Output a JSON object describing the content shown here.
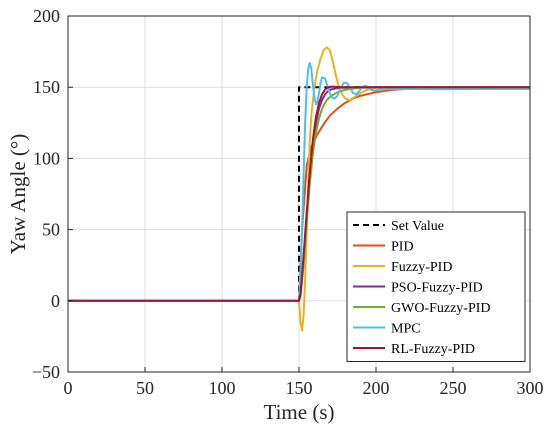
{
  "chart_data": {
    "type": "line",
    "xlabel": "Time (s)",
    "ylabel": "Yaw Angle (°)",
    "xlim": [
      0,
      300
    ],
    "ylim": [
      -50,
      200
    ],
    "xticks": [
      0,
      50,
      100,
      150,
      200,
      250,
      300
    ],
    "yticks": [
      -50,
      0,
      50,
      100,
      150,
      200
    ],
    "xtick_labels": [
      "0",
      "50",
      "100",
      "150",
      "200",
      "250",
      "300"
    ],
    "ytick_labels": [
      "−50",
      "0",
      "50",
      "100",
      "150",
      "200"
    ],
    "grid": true,
    "legend_position": "bottom-right",
    "series": [
      {
        "name": "Set Value",
        "color": "#000000",
        "dash": true,
        "x": [
          0,
          150,
          150,
          300
        ],
        "y": [
          0,
          0,
          150,
          150
        ]
      },
      {
        "name": "PID",
        "color": "#D95319",
        "x": [
          0,
          150,
          152,
          155,
          158,
          162,
          166,
          170,
          175,
          180,
          185,
          190,
          200,
          210,
          220,
          235,
          250,
          270,
          300
        ],
        "y": [
          0,
          0,
          50,
          95,
          108,
          117,
          124,
          130,
          135,
          139,
          142,
          144,
          146.5,
          148,
          148.8,
          149.4,
          149.7,
          149.9,
          150
        ]
      },
      {
        "name": "Fuzzy-PID",
        "color": "#EDB120",
        "x": [
          0,
          150,
          151,
          152,
          153,
          154,
          155,
          156,
          157,
          158,
          160,
          162,
          164,
          166,
          168,
          170,
          172,
          174,
          176,
          178,
          180,
          183,
          186,
          190,
          195,
          200,
          210,
          230,
          260,
          300
        ],
        "y": [
          0,
          0,
          -15,
          -21,
          -10,
          15,
          50,
          85,
          112,
          130,
          150,
          162,
          170,
          176,
          178,
          176,
          168,
          158,
          150,
          145,
          142,
          141,
          143,
          146,
          148.5,
          149.5,
          150,
          150,
          150,
          150
        ]
      },
      {
        "name": "PSO-Fuzzy-PID",
        "color": "#7E2F8E",
        "x": [
          0,
          150,
          151,
          153,
          155,
          157,
          159,
          161,
          163,
          165,
          167,
          169,
          171,
          174,
          178,
          185,
          200,
          230,
          300
        ],
        "y": [
          0,
          0,
          5,
          30,
          60,
          88,
          110,
          125,
          135,
          141,
          145,
          147.5,
          148.5,
          149.2,
          149.6,
          149.8,
          150,
          150,
          150
        ]
      },
      {
        "name": "GWO-Fuzzy-PID",
        "color": "#77AC30",
        "x": [
          0,
          150,
          151,
          153,
          155,
          157,
          159,
          161,
          163,
          165,
          168,
          171,
          175,
          180,
          185,
          190,
          200,
          220,
          300
        ],
        "y": [
          0,
          0,
          3,
          25,
          55,
          82,
          103,
          118,
          128,
          135,
          141,
          144,
          146.5,
          148.2,
          149,
          149.5,
          149.9,
          150,
          150
        ]
      },
      {
        "name": "MPC",
        "color": "#4DBEEE",
        "x": [
          0,
          150,
          151,
          152,
          153,
          154,
          155,
          156,
          157,
          158,
          159,
          160,
          161,
          162,
          163,
          164,
          165,
          167,
          169,
          171,
          173,
          175,
          177,
          179,
          181,
          183,
          185,
          187,
          189,
          191,
          193,
          195,
          197,
          199,
          201,
          205,
          210,
          220,
          240,
          270,
          300
        ],
        "y": [
          0,
          0,
          20,
          50,
          90,
          125,
          150,
          163,
          167,
          163,
          152,
          143,
          138,
          140,
          146,
          153,
          157,
          156,
          149,
          143,
          142,
          144,
          149,
          153,
          153,
          150,
          146,
          145,
          147,
          150,
          151,
          150,
          148,
          147.5,
          148,
          149,
          148.5,
          148.8,
          148.6,
          148.7,
          148.7
        ]
      },
      {
        "name": "RL-Fuzzy-PID",
        "color": "#A2142F",
        "x": [
          0,
          150,
          151,
          153,
          155,
          157,
          159,
          161,
          163,
          165,
          167,
          169,
          171,
          174,
          178,
          190,
          220,
          300
        ],
        "y": [
          0,
          0,
          5,
          32,
          62,
          90,
          113,
          129,
          139,
          145,
          148.5,
          150,
          150.4,
          150.2,
          150,
          150,
          150,
          150
        ]
      }
    ]
  }
}
